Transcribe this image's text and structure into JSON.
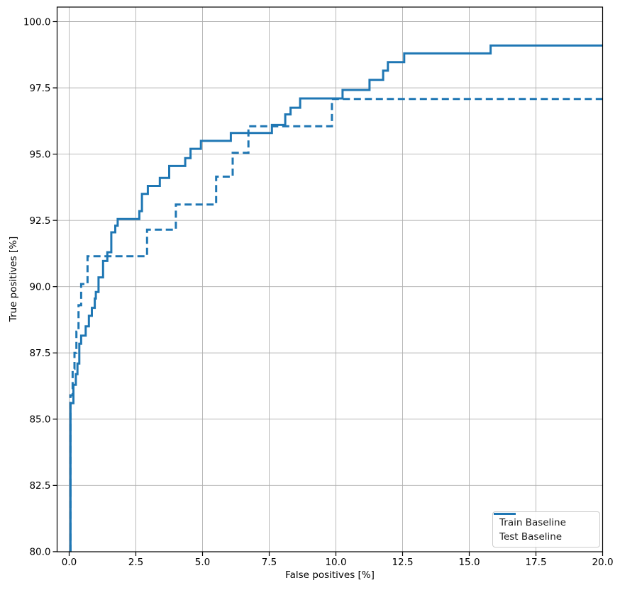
{
  "chart_data": {
    "type": "line",
    "subtype": "step_roc",
    "title": "",
    "xlabel": "False positives [%]",
    "ylabel": "True positives [%]",
    "xlim": [
      -0.45,
      20.0
    ],
    "ylim": [
      80.0,
      100.55
    ],
    "x_end": 20.0,
    "grid": true,
    "legend_position": "lower right",
    "accent_color": "#1f77b4",
    "grid_color": "#b0b0b0",
    "spine_color": "#000000",
    "x_ticks": {
      "values": [
        0,
        2.5,
        5,
        7.5,
        10,
        12.5,
        15,
        17.5,
        20
      ],
      "labels": [
        "0.0",
        "2.5",
        "5.0",
        "7.5",
        "10.0",
        "12.5",
        "15.0",
        "17.5",
        "20.0"
      ]
    },
    "y_ticks": {
      "values": [
        80,
        82.5,
        85,
        87.5,
        90,
        92.5,
        95,
        97.5,
        100
      ],
      "labels": [
        "80.0",
        "82.5",
        "85.0",
        "87.5",
        "90.0",
        "92.5",
        "95.0",
        "97.5",
        "100.0"
      ]
    },
    "series": [
      {
        "name": "Train Baseline",
        "style": "solid",
        "color": "#1f77b4",
        "start": [
          0.05,
          80
        ],
        "steps": [
          [
            0.05,
            85.6
          ],
          [
            0.16,
            86.3
          ],
          [
            0.25,
            86.7
          ],
          [
            0.31,
            87.1
          ],
          [
            0.38,
            87.85
          ],
          [
            0.45,
            88.15
          ],
          [
            0.62,
            88.5
          ],
          [
            0.74,
            88.9
          ],
          [
            0.85,
            89.2
          ],
          [
            0.96,
            89.55
          ],
          [
            1.0,
            89.8
          ],
          [
            1.1,
            90.35
          ],
          [
            1.27,
            90.97
          ],
          [
            1.43,
            91.3
          ],
          [
            1.58,
            92.05
          ],
          [
            1.73,
            92.3
          ],
          [
            1.82,
            92.55
          ],
          [
            2.63,
            92.85
          ],
          [
            2.73,
            93.5
          ],
          [
            2.95,
            93.8
          ],
          [
            3.4,
            94.1
          ],
          [
            3.75,
            94.55
          ],
          [
            4.35,
            94.85
          ],
          [
            4.55,
            95.2
          ],
          [
            4.94,
            95.5
          ],
          [
            6.06,
            95.8
          ],
          [
            7.6,
            96.1
          ],
          [
            8.1,
            96.5
          ],
          [
            8.3,
            96.75
          ],
          [
            8.66,
            97.1
          ],
          [
            10.25,
            97.42
          ],
          [
            11.26,
            97.8
          ],
          [
            11.77,
            98.15
          ],
          [
            11.95,
            98.47
          ],
          [
            12.56,
            98.8
          ],
          [
            15.8,
            99.1
          ]
        ]
      },
      {
        "name": "Test Baseline",
        "style": "dashed",
        "color": "#1f77b4",
        "start": [
          0.05,
          80
        ],
        "steps": [
          [
            0.05,
            85.9
          ],
          [
            0.13,
            86.9
          ],
          [
            0.2,
            87.5
          ],
          [
            0.27,
            88.3
          ],
          [
            0.35,
            89.3
          ],
          [
            0.45,
            90.1
          ],
          [
            0.69,
            91.15
          ],
          [
            2.92,
            92.15
          ],
          [
            4.0,
            93.1
          ],
          [
            5.51,
            94.15
          ],
          [
            6.13,
            95.05
          ],
          [
            6.72,
            96.05
          ],
          [
            9.85,
            97.08
          ]
        ]
      }
    ]
  }
}
